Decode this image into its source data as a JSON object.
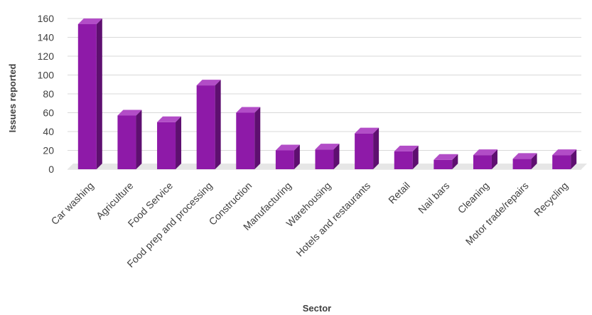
{
  "chart_data": {
    "type": "bar",
    "style": "3d-column",
    "categories": [
      "Car washing",
      "Agriculture",
      "Food Service",
      "Food prep and processing",
      "Construction",
      "Manufacturing",
      "Warehousing",
      "Hotels and restaurants",
      "Retail",
      "Nail bars",
      "Cleaning",
      "Motor trade/repairs",
      "Recycling"
    ],
    "values": [
      154,
      57,
      50,
      89,
      60,
      20,
      21,
      38,
      19,
      10,
      15,
      11,
      15
    ],
    "xlabel": "Sector",
    "ylabel": "Issues reported",
    "ylim": [
      0,
      160
    ],
    "yticks": [
      0,
      20,
      40,
      60,
      80,
      100,
      120,
      140,
      160
    ],
    "grid": true,
    "legend": "none",
    "colors": {
      "bar_front": "#8e1aa8",
      "bar_side": "#5e0f70",
      "bar_top": "#b24dc7",
      "gridline": "#d9d9d9",
      "floor": "#e6e6e6",
      "text": "#404040"
    }
  }
}
